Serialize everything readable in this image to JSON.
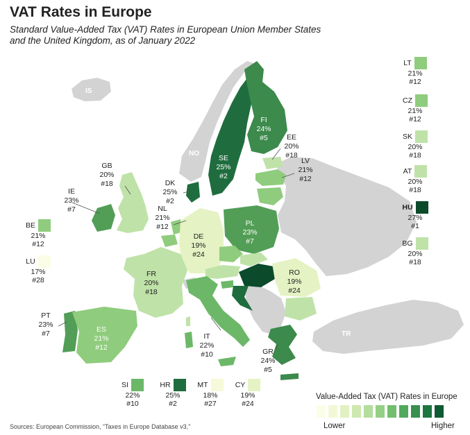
{
  "title": "VAT Rates in Europe",
  "subtitle": "Standard Value-Added Tax (VAT) Rates in European Union Member States and the United Kingdom, as of January 2022",
  "source": "Sources: European Commission, “Taxes in Europe Database v3,”",
  "scale": {
    "title": "Value-Added Tax (VAT) Rates in Europe",
    "low_label": "Lower",
    "high_label": "Higher",
    "colors": [
      "#fcfde6",
      "#f2f8d5",
      "#e2f1c1",
      "#cde8b1",
      "#b3dd9c",
      "#95cf85",
      "#73bd6f",
      "#52a85c",
      "#37904d",
      "#1d7540",
      "#0d5a33"
    ]
  },
  "colors": {
    "non_eu": "#d3d3d4",
    "rate_17": "#fcfde6",
    "rate_19": "#e5f2c3",
    "rate_20": "#bfe2a8",
    "rate_21": "#8fcc7d",
    "rate_22": "#6cb868",
    "rate_23": "#529e57",
    "rate_24": "#3c8a4c",
    "rate_25": "#1f6d3e",
    "rate_27": "#0b4a2a"
  },
  "gray_labels": {
    "is": "IS",
    "no": "NO",
    "tr": "TR"
  },
  "countries": {
    "se": {
      "code": "SE",
      "rate": "25%",
      "rank": "#2"
    },
    "fi": {
      "code": "FI",
      "rate": "24%",
      "rank": "#5"
    },
    "ee": {
      "code": "EE",
      "rate": "20%",
      "rank": "#18"
    },
    "lv": {
      "code": "LV",
      "rate": "21%",
      "rank": "#12"
    },
    "gb": {
      "code": "GB",
      "rate": "20%",
      "rank": "#18"
    },
    "ie": {
      "code": "IE",
      "rate": "23%",
      "rank": "#7"
    },
    "dk": {
      "code": "DK",
      "rate": "25%",
      "rank": "#2"
    },
    "nl": {
      "code": "NL",
      "rate": "21%",
      "rank": "#12"
    },
    "de": {
      "code": "DE",
      "rate": "19%",
      "rank": "#24"
    },
    "pl": {
      "code": "PL",
      "rate": "23%",
      "rank": "#7"
    },
    "fr": {
      "code": "FR",
      "rate": "20%",
      "rank": "#18"
    },
    "ro": {
      "code": "RO",
      "rate": "19%",
      "rank": "#24"
    },
    "pt": {
      "code": "PT",
      "rate": "23%",
      "rank": "#7"
    },
    "es": {
      "code": "ES",
      "rate": "21%",
      "rank": "#12"
    },
    "it": {
      "code": "IT",
      "rate": "22%",
      "rank": "#10"
    },
    "gr": {
      "code": "GR",
      "rate": "24%",
      "rank": "#5"
    }
  },
  "side_legend": {
    "lt": {
      "code": "LT",
      "rate": "21%",
      "rank": "#12"
    },
    "cz": {
      "code": "CZ",
      "rate": "21%",
      "rank": "#12"
    },
    "sk": {
      "code": "SK",
      "rate": "20%",
      "rank": "#18"
    },
    "at": {
      "code": "AT",
      "rate": "20%",
      "rank": "#18"
    },
    "hu": {
      "code": "HU",
      "rate": "27%",
      "rank": "#1"
    },
    "bg": {
      "code": "BG",
      "rate": "20%",
      "rank": "#18"
    },
    "be": {
      "code": "BE",
      "rate": "21%",
      "rank": "#12"
    },
    "lu": {
      "code": "LU",
      "rate": "17%",
      "rank": "#28"
    },
    "si": {
      "code": "SI",
      "rate": "22%",
      "rank": "#10"
    },
    "hr": {
      "code": "HR",
      "rate": "25%",
      "rank": "#2"
    },
    "mt": {
      "code": "MT",
      "rate": "18%",
      "rank": "#27"
    },
    "cy": {
      "code": "CY",
      "rate": "19%",
      "rank": "#24"
    }
  }
}
